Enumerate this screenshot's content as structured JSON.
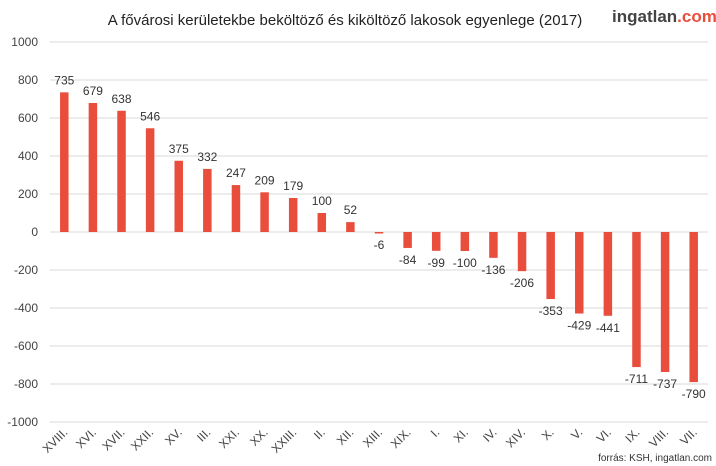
{
  "chart_data": {
    "type": "bar",
    "title": "A fővárosi kerületekbe beköltöző és kiköltöző lakosok egyenlege  (2017)",
    "categories": [
      "XVIII.",
      "XVI.",
      "XVII.",
      "XXII.",
      "XV.",
      "III.",
      "XXI.",
      "XX.",
      "XXIII.",
      "II.",
      "XII.",
      "XIII.",
      "XIX.",
      "I.",
      "XI.",
      "IV.",
      "XIV.",
      "X.",
      "V.",
      "VI.",
      "IX.",
      "VIII.",
      "VII."
    ],
    "values": [
      735,
      679,
      638,
      546,
      375,
      332,
      247,
      209,
      179,
      100,
      52,
      -6,
      -84,
      -99,
      -100,
      -136,
      -206,
      -353,
      -429,
      -441,
      -711,
      -737,
      -790
    ],
    "yticks": [
      "1000",
      "800",
      "600",
      "400",
      "200",
      "0",
      "-200",
      "-400",
      "-600",
      "-800",
      "-1000"
    ],
    "ylim": [
      -1000,
      1000
    ],
    "grid": true,
    "bar_color": "#e94e3d",
    "grid_color": "#d9d9d9"
  },
  "brand": {
    "name": "ingatlan",
    "suffix": ".com"
  },
  "source": "forrás: KSH, ingatlan.com"
}
